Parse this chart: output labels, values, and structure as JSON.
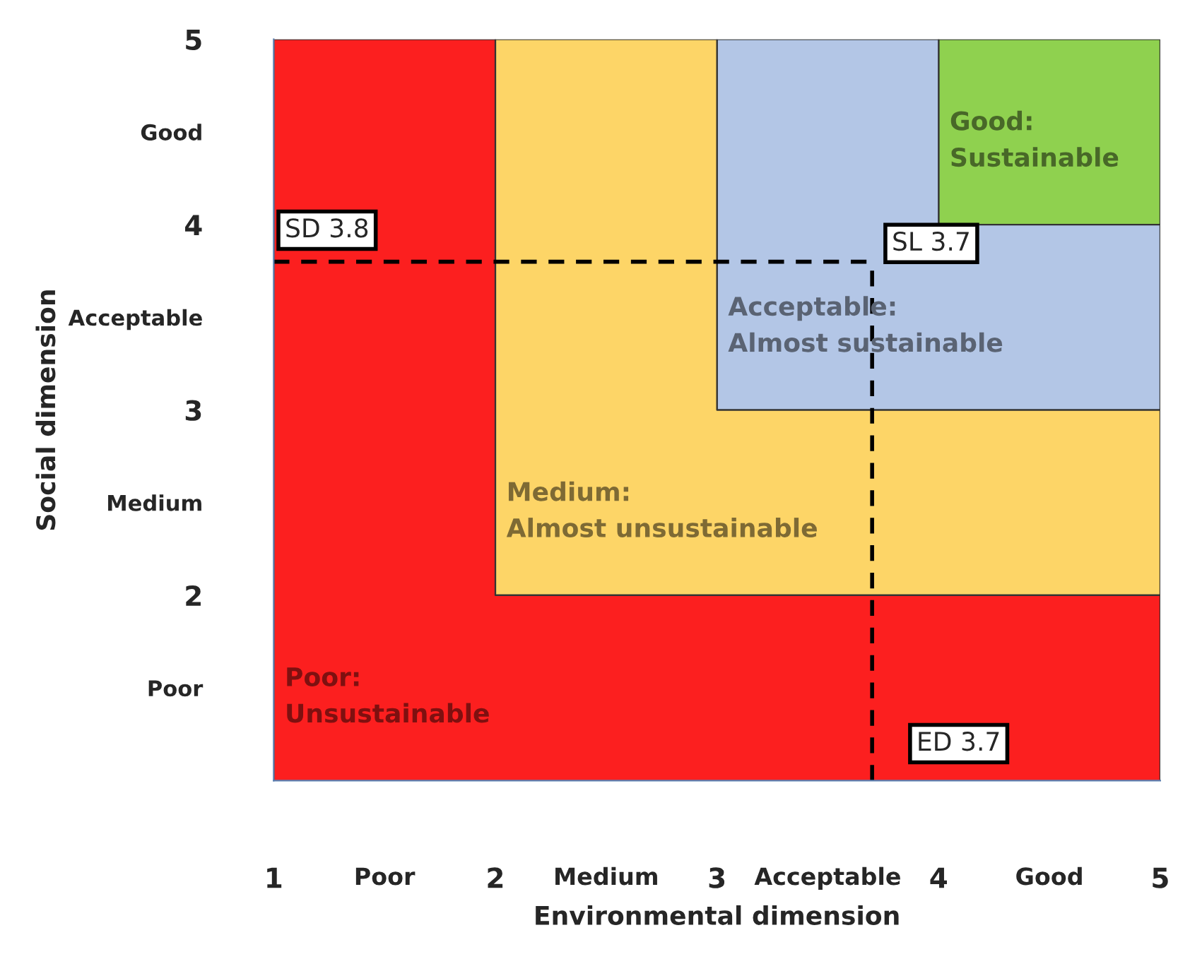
{
  "chart_data": {
    "type": "area",
    "xlabel": "Environmental dimension",
    "ylabel": "Social dimension",
    "stacked": true,
    "x": [
      1,
      2,
      2,
      3,
      3,
      4,
      4,
      5
    ],
    "series": [
      {
        "name": "Poor:\nUnsustainable",
        "color": "#fc1f1f",
        "values": [
          5,
          5,
          2,
          2,
          2,
          2,
          2,
          2
        ]
      },
      {
        "name": "Medium:\nAlmost unsustainable",
        "color": "#fdd567",
        "values": [
          null,
          null,
          3,
          3,
          1,
          1,
          1,
          1
        ]
      },
      {
        "name": "Acceptable:\nAlmost sustainable",
        "color": "#b3c6e6",
        "values": [
          null,
          null,
          null,
          null,
          2,
          2,
          1,
          1
        ]
      },
      {
        "name": "Good:\nSustainable",
        "color": "#8fd14f",
        "values": [
          null,
          null,
          null,
          null,
          null,
          null,
          1,
          1
        ]
      }
    ],
    "xlim": [
      1,
      5
    ],
    "ylim": [
      1,
      5
    ],
    "xticks": [
      1,
      {
        "value": 1.5,
        "label": "Poor"
      },
      2,
      {
        "value": 2.5,
        "label": "Medium"
      },
      3,
      {
        "value": 3.5,
        "label": "Acceptable"
      },
      4,
      {
        "value": 4.5,
        "label": "Good"
      },
      5
    ],
    "yticks": [
      {
        "value": 1,
        "label": null
      },
      {
        "value": 1.5,
        "label": "Poor"
      },
      2,
      {
        "value": 2.5,
        "label": "Medium"
      },
      3,
      {
        "value": 3.5,
        "label": "Acceptable"
      },
      4,
      {
        "value": 4.5,
        "label": "Good"
      },
      5
    ],
    "ref_lines": [
      {
        "axis": "x",
        "value": 3.7,
        "label": "ED 3.7",
        "line_style": "dashed",
        "color": "#000000"
      },
      {
        "axis": "y",
        "value": 3.8,
        "label": "SD 3.8",
        "line_style": "dashed",
        "color": "#000000"
      }
    ],
    "annotations": [
      "SL 3.7"
    ],
    "grid": false
  }
}
